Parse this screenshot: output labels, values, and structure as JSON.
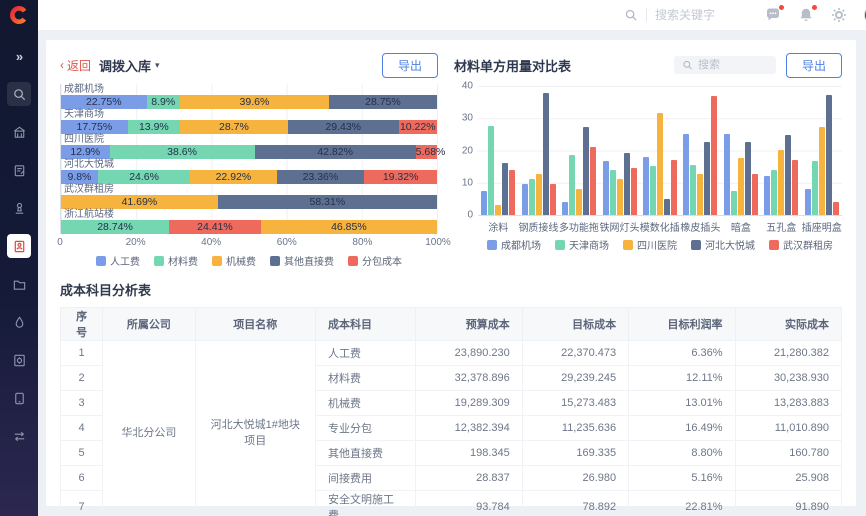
{
  "topbar": {
    "search_placeholder": "搜索关键字",
    "icon_names": [
      "search-icon",
      "message-icon",
      "bell-icon",
      "gear-icon",
      "avatar"
    ]
  },
  "sidebar": {
    "icon_names": [
      "collapse-icon",
      "search-icon",
      "building-icon",
      "clipboard-edit-icon",
      "stamp-icon",
      "cost-analysis-icon",
      "folder-icon",
      "droplet-icon",
      "clipboard-gear-icon",
      "tablet-icon",
      "transfer-icon"
    ],
    "active_index": 5
  },
  "left_panel": {
    "back_label": "返回",
    "back_chevron": "‹",
    "title": "调拨入库",
    "caret": "▼",
    "export_label": "导出"
  },
  "right_panel": {
    "title": "材料单方用量对比表",
    "search_placeholder": "搜索",
    "export_label": "导出"
  },
  "series_colors": {
    "人工费": "#7b9de8",
    "材料费": "#74d7b1",
    "机械费": "#f6b33e",
    "其他直接费": "#5d7092",
    "分包成本": "#ed6a5c"
  },
  "chart_data": [
    {
      "type": "bar",
      "subtype": "horizontal-stacked-percent",
      "title": "调拨入库",
      "xticks": [
        "0",
        "20%",
        "40%",
        "60%",
        "80%",
        "100%"
      ],
      "xlim": [
        0,
        100
      ],
      "legend": [
        "人工费",
        "材料费",
        "机械费",
        "其他直接费",
        "分包成本"
      ],
      "legend_position": "bottom",
      "grid": true,
      "rows": [
        {
          "category": "成都机场",
          "segments": [
            {
              "series": "人工费",
              "value": 22.75
            },
            {
              "series": "材料费",
              "value": 8.9
            },
            {
              "series": "机械费",
              "value": 39.6
            },
            {
              "series": "其他直接费",
              "value": 28.75
            }
          ]
        },
        {
          "category": "天津商场",
          "segments": [
            {
              "series": "人工费",
              "value": 17.75
            },
            {
              "series": "材料费",
              "value": 13.9
            },
            {
              "series": "机械费",
              "value": 28.7
            },
            {
              "series": "其他直接费",
              "value": 29.43
            },
            {
              "series": "分包成本",
              "value": 10.22
            }
          ]
        },
        {
          "category": "四川医院",
          "segments": [
            {
              "series": "人工费",
              "value": 12.9
            },
            {
              "series": "材料费",
              "value": 38.6
            },
            {
              "series": "其他直接费",
              "value": 42.82
            },
            {
              "series": "分包成本",
              "value": 5.68
            }
          ]
        },
        {
          "category": "河北大悦城",
          "segments": [
            {
              "series": "人工费",
              "value": 9.8
            },
            {
              "series": "材料费",
              "value": 24.6
            },
            {
              "series": "机械费",
              "value": 22.92
            },
            {
              "series": "其他直接费",
              "value": 23.36
            },
            {
              "series": "分包成本",
              "value": 19.32
            }
          ]
        },
        {
          "category": "武汉群租房",
          "segments": [
            {
              "series": "机械费",
              "value": 41.69
            },
            {
              "series": "其他直接费",
              "value": 58.31
            }
          ]
        },
        {
          "category": "浙江航站楼",
          "segments": [
            {
              "series": "材料费",
              "value": 28.74
            },
            {
              "series": "分包成本",
              "value": 24.41
            },
            {
              "series": "机械费",
              "value": 46.85
            }
          ]
        }
      ]
    },
    {
      "type": "bar",
      "subtype": "vertical-grouped",
      "title": "材料单方用量对比表",
      "categories": [
        "涂料",
        "钢质接线盒",
        "多功能拖线板",
        "铁网灯头",
        "模数化插座",
        "橡皮插头",
        "暗盒",
        "五孔盒",
        "插座明盒"
      ],
      "yticks": [
        0,
        10,
        20,
        30,
        40
      ],
      "ylim": [
        0,
        40
      ],
      "grid": true,
      "legend_position": "bottom",
      "series": [
        {
          "name": "成都机场",
          "color": "#7b9de8",
          "values": [
            7.5,
            9.5,
            4,
            16.5,
            18,
            25,
            25,
            12,
            8
          ]
        },
        {
          "name": "天津商场",
          "color": "#74d7b1",
          "values": [
            27.5,
            11,
            18.5,
            14,
            15,
            15.5,
            7.5,
            14,
            16.5
          ]
        },
        {
          "name": "四川医院",
          "color": "#f6b33e",
          "values": [
            3,
            12.5,
            8,
            11,
            31.5,
            12.5,
            17.5,
            20,
            27
          ]
        },
        {
          "name": "河北大悦城",
          "color": "#5d7092",
          "values": [
            16,
            37.5,
            27,
            19,
            5,
            22.5,
            22.5,
            24.5,
            37
          ]
        },
        {
          "name": "武汉群租房",
          "color": "#ed6a5c",
          "values": [
            14,
            9.5,
            21,
            14.5,
            17,
            36.5,
            12.5,
            17,
            4
          ]
        }
      ]
    }
  ],
  "table": {
    "title": "成本科目分析表",
    "headers": [
      "序号",
      "所属公司",
      "项目名称",
      "成本科目",
      "预算成本",
      "目标成本",
      "目标利润率",
      "实际成本"
    ],
    "company": "华北分公司",
    "project": "河北大悦城1#地块项目",
    "rows": [
      {
        "no": "1",
        "subject": "人工费",
        "budget": "23,890.230",
        "target": "22,370.473",
        "margin": "6.36%",
        "actual": "21,280.382"
      },
      {
        "no": "2",
        "subject": "材料费",
        "budget": "32,378.896",
        "target": "29,239.245",
        "margin": "12.11%",
        "actual": "30,238.930"
      },
      {
        "no": "3",
        "subject": "机械费",
        "budget": "19,289.309",
        "target": "15,273.483",
        "margin": "13.01%",
        "actual": "13,283.883"
      },
      {
        "no": "4",
        "subject": "专业分包",
        "budget": "12,382.394",
        "target": "11,235.636",
        "margin": "16.49%",
        "actual": "11,010.890"
      },
      {
        "no": "5",
        "subject": "其他直接费",
        "budget": "198.345",
        "target": "169.335",
        "margin": "8.80%",
        "actual": "160.780"
      },
      {
        "no": "6",
        "subject": "间接费用",
        "budget": "28.837",
        "target": "26.980",
        "margin": "5.16%",
        "actual": "25.908"
      },
      {
        "no": "7",
        "subject": "安全文明施工费",
        "budget": "93.784",
        "target": "78.892",
        "margin": "22.81%",
        "actual": "91.890"
      }
    ]
  }
}
